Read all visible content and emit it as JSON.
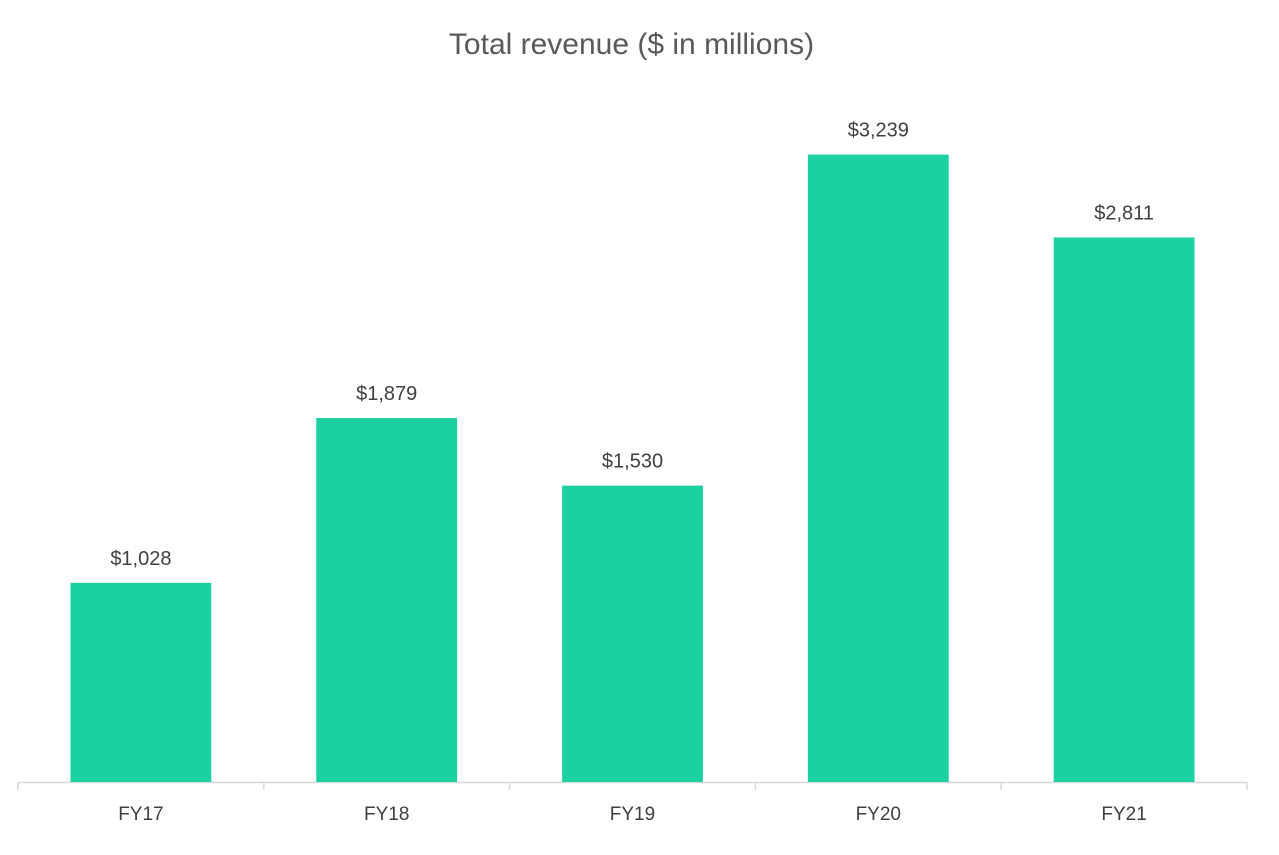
{
  "chart_data": {
    "type": "bar",
    "title": "Total revenue ($ in millions)",
    "categories": [
      "FY17",
      "FY18",
      "FY19",
      "FY20",
      "FY21"
    ],
    "values": [
      1028,
      1879,
      1530,
      3239,
      2811
    ],
    "data_labels": [
      "$1,028",
      "$1,879",
      "$1,530",
      "$3,239",
      "$2,811"
    ],
    "xlabel": "",
    "ylabel": "",
    "ylim": [
      0,
      3700
    ],
    "grid": false,
    "legend": "none",
    "bar_color": "#1BD1A0",
    "axis_color": "#d9d9d9",
    "label_color": "#404040"
  }
}
